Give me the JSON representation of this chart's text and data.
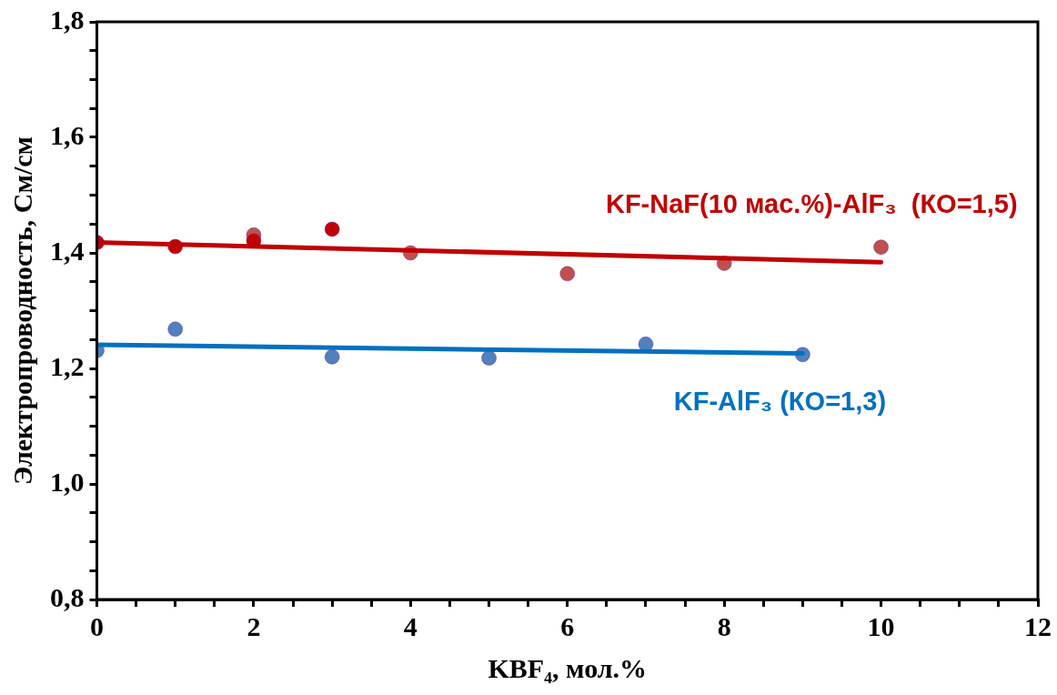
{
  "chart_data": {
    "type": "scatter",
    "xlabel": "KBF₄, мол.%",
    "ylabel": "Электропроводность, См/см",
    "xlim": [
      0,
      12
    ],
    "ylim": [
      0.8,
      1.8
    ],
    "xticks": [
      0,
      {
        "value": 0.5,
        "label": null
      },
      {
        "value": 1,
        "label": null
      },
      {
        "value": 1.5,
        "label": null
      },
      2,
      {
        "value": 2.5,
        "label": null
      },
      {
        "value": 3,
        "label": null
      },
      {
        "value": 3.5,
        "label": null
      },
      4,
      {
        "value": 4.5,
        "label": null
      },
      {
        "value": 5,
        "label": null
      },
      {
        "value": 5.5,
        "label": null
      },
      6,
      {
        "value": 6.5,
        "label": null
      },
      {
        "value": 7,
        "label": null
      },
      {
        "value": 7.5,
        "label": null
      },
      8,
      {
        "value": 8.5,
        "label": null
      },
      {
        "value": 9,
        "label": null
      },
      {
        "value": 9.5,
        "label": null
      },
      10,
      {
        "value": 10.5,
        "label": null
      },
      {
        "value": 11,
        "label": null
      },
      {
        "value": 11.5,
        "label": null
      },
      12
    ],
    "yticks": [
      {
        "value": 0.8,
        "label": "0,8"
      },
      {
        "value": 0.85,
        "label": null
      },
      {
        "value": 0.9,
        "label": null
      },
      {
        "value": 0.95,
        "label": null
      },
      {
        "value": 1.0,
        "label": "1,0"
      },
      {
        "value": 1.05,
        "label": null
      },
      {
        "value": 1.1,
        "label": null
      },
      {
        "value": 1.15,
        "label": null
      },
      {
        "value": 1.2,
        "label": "1,2"
      },
      {
        "value": 1.25,
        "label": null
      },
      {
        "value": 1.3,
        "label": null
      },
      {
        "value": 1.35,
        "label": null
      },
      {
        "value": 1.4,
        "label": "1,4"
      },
      {
        "value": 1.45,
        "label": null
      },
      {
        "value": 1.5,
        "label": null
      },
      {
        "value": 1.55,
        "label": null
      },
      {
        "value": 1.6,
        "label": "1,6"
      },
      {
        "value": 1.65,
        "label": null
      },
      {
        "value": 1.7,
        "label": null
      },
      {
        "value": 1.75,
        "label": null
      },
      {
        "value": 1.8,
        "label": "1,8"
      }
    ],
    "grid": false,
    "legend": false,
    "series": [
      {
        "type": "line",
        "name": "KF-NaF(10 мас.%)-AlF₃  (КО=1,5)",
        "color": "#c00000",
        "marker": "none",
        "x": [
          0,
          10
        ],
        "values": [
          1.418,
          1.384
        ]
      },
      {
        "color": "#c00000",
        "marker": "circle",
        "x": [
          0,
          1,
          2,
          3
        ],
        "values": [
          1.418,
          1.411,
          1.421,
          1.441
        ]
      },
      {
        "color": "#c0504d",
        "marker": "circle",
        "x": [
          2,
          4,
          6,
          8,
          10
        ],
        "values": [
          1.431,
          1.4,
          1.364,
          1.382,
          1.41
        ]
      },
      {
        "type": "line",
        "name": "KF-AlF₃ (КО=1,3)",
        "color": "#0070c0",
        "marker": "none",
        "x": [
          0,
          9
        ],
        "values": [
          1.241,
          1.226
        ]
      },
      {
        "color": "#4f81bd",
        "marker": "circle",
        "x": [
          0,
          1,
          3,
          5,
          7,
          9
        ],
        "values": [
          1.231,
          1.268,
          1.22,
          1.218,
          1.242,
          1.224
        ]
      }
    ]
  }
}
